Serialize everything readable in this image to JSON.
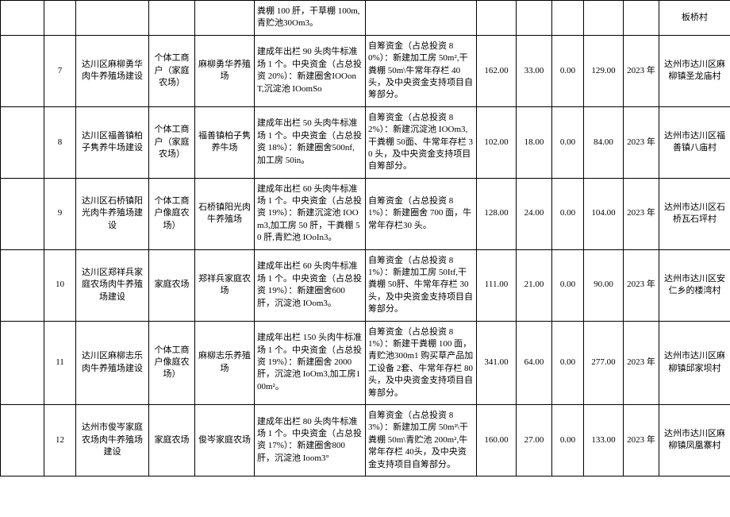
{
  "rows": [
    {
      "c0": "",
      "c1": "",
      "c2": "",
      "c3": "",
      "c4": "",
      "c5": "粪棚 100 肝，干草棚 100m,青贮池30Om3。",
      "c6": "",
      "c7": "",
      "c8": "",
      "c9": "",
      "c10": "",
      "c11": "",
      "c12": "板桥村"
    },
    {
      "c0": "",
      "c1": "7",
      "c2": "达川区麻柳勇华肉牛养殖场建设",
      "c3": "个体工商户（家庭农场）",
      "c4": "麻柳勇华养殖场",
      "c5": "建成年出栏 90 头肉牛标准场 1 个。中央资金（占总投资 20%）：新建圈舍IOOonT,沉淀池 IOomSo",
      "c6": "自筹资金（占总投资 80%）：新建加工房 50m²,干粪棚 50m\\牛常年存栏 40 头，及中央资金支持项目自筹部分。",
      "c7": "162.00",
      "c8": "33.00",
      "c9": "0.00",
      "c10": "129.00",
      "c11": "2023 年",
      "c12": "达州市达川区麻柳镇圣龙庙村"
    },
    {
      "c0": "",
      "c1": "8",
      "c2": "达川区福善镇柏子隽养牛场建设",
      "c3": "个体工商户（家庭农场）",
      "c4": "福善镇柏子隽养牛场",
      "c5": "建成年出栏 50 头肉牛标准场 1 个。中央资金（占总投资 18%）：新建圈舍500nf,加工房 50in。",
      "c6": "自筹资金（占总投资 82%）：新建沉淀池 IOOm3,干粪棚 50面、牛常年存栏 30 头，及中央资金支持项目自筹部分。",
      "c7": "102.00",
      "c8": "18.00",
      "c9": "0.00",
      "c10": "84.00",
      "c11": "2023 年",
      "c12": "达州市达川区福善镇八庙村"
    },
    {
      "c0": "",
      "c1": "9",
      "c2": "达川区石桥镇阳光肉牛养殖场建设",
      "c3": "个体工商户像庭农场）",
      "c4": "石桥镇阳光肉牛养殖场",
      "c5": "建成年出栏 60 头肉牛标准场 1 个。中央资金（占总投资 19%）：新建沉淀池 IOOm3,加工房 50 肝，干粪棚 50 肝,青贮池 IOoIn3。",
      "c6": "自筹资金（占总投资 81%）：新建圈舍 700 面，牛常年存栏30 头。",
      "c7": "128.00",
      "c8": "24.00",
      "c9": "0.00",
      "c10": "104.00",
      "c11": "2023 年",
      "c12": "达州市达川区石桥瓦石坪村"
    },
    {
      "c0": "",
      "c1": "10",
      "c2": "达川区郑祥兵家庭农场肉牛养殖场建设",
      "c3": "家庭农场",
      "c4": "郑祥兵家庭农场",
      "c5": "建成年出栏 60 头肉牛标准场 1 个。中央资金（占总投资 19%）：新建圈舍600 肝，沉淀池 IOom3。",
      "c6": "自筹资金（占总投资 81%）：新建加工房 50Itf,干粪棚 50肝、牛常年存栏 30 头，及中央资金支持项目自筹部分。",
      "c7": "111.00",
      "c8": "21.00",
      "c9": "0.00",
      "c10": "90.00",
      "c11": "2023 年",
      "c12": "达州市达川区安仁乡的楼湾村"
    },
    {
      "c0": "",
      "c1": "11",
      "c2": "达川区麻柳志乐肉牛养殖场建设",
      "c3": "个体工商户像庭农场）",
      "c4": "麻柳志乐养殖场",
      "c5": "建成年出栏 150 头肉牛标准场 1 个。中央资金（占总投资 19%）：新建圈舍 2000 肝，沉淀池 IoOm3,加工房100m²。",
      "c6": "自筹资金（占总投资 81%）：新建干粪棚 100 面，青贮池300m1 购买草产品加工设备 2套、牛常年存栏 80 头，及中央资金支持项目自筹部分。",
      "c7": "341.00",
      "c8": "64.00",
      "c9": "0.00",
      "c10": "277.00",
      "c11": "2023 年",
      "c12": "达州市达川区麻柳镇邱家坝村"
    },
    {
      "c0": "",
      "c1": "12",
      "c2": "达州市俊岑家庭农场肉牛养殖场建设",
      "c3": "家庭农场",
      "c4": "俊岑家庭农场",
      "c5": "建成年出栏 80 头肉牛标准场 1 个。中央资金（占总投资 17%）：新建圈舍800 肝，沉淀池 Ioom3°",
      "c6": "自筹资金（占总投资 83%）：新建加工房 50m²\\干粪棚 50m\\青贮池 200m²,牛常年存栏 40头，及中央资金支持项目自筹部分。",
      "c7": "160.00",
      "c8": "27.00",
      "c9": "0.00",
      "c10": "133.00",
      "c11": "2023 年",
      "c12": "达州市达川区麻柳镇凤凰寨村"
    }
  ]
}
